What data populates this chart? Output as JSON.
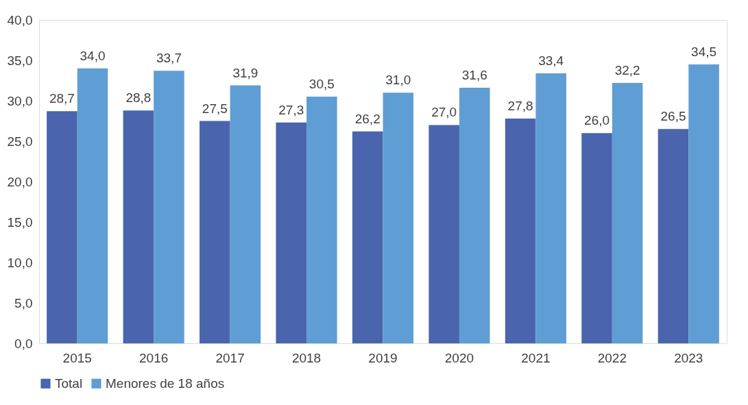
{
  "chart_data": {
    "type": "bar",
    "categories": [
      "2015",
      "2016",
      "2017",
      "2018",
      "2019",
      "2020",
      "2021",
      "2022",
      "2023"
    ],
    "series": [
      {
        "name": "Total",
        "color": "#4a64ad",
        "values": [
          28.7,
          28.8,
          27.5,
          27.3,
          26.2,
          27.0,
          27.8,
          26.0,
          26.5
        ],
        "value_labels": [
          "28,7",
          "28,8",
          "27,5",
          "27,3",
          "26,2",
          "27,0",
          "27,8",
          "26,0",
          "26,5"
        ]
      },
      {
        "name": "Menores de 18 años",
        "color": "#5f9ed5",
        "values": [
          34.0,
          33.7,
          31.9,
          30.5,
          31.0,
          31.6,
          33.4,
          32.2,
          34.5
        ],
        "value_labels": [
          "34,0",
          "33,7",
          "31,9",
          "30,5",
          "31,0",
          "31,6",
          "33,4",
          "32,2",
          "34,5"
        ]
      }
    ],
    "ylim": [
      0,
      40
    ],
    "yticks": [
      {
        "value": 0,
        "label": "0,0"
      },
      {
        "value": 5,
        "label": "5,0"
      },
      {
        "value": 10,
        "label": "10,0"
      },
      {
        "value": 15,
        "label": "15,0"
      },
      {
        "value": 20,
        "label": "20,0"
      },
      {
        "value": 25,
        "label": "25,0"
      },
      {
        "value": 30,
        "label": "30,0"
      },
      {
        "value": 35,
        "label": "35,0"
      },
      {
        "value": 40,
        "label": "40,0"
      }
    ],
    "grid": false,
    "legend": "bottom"
  }
}
